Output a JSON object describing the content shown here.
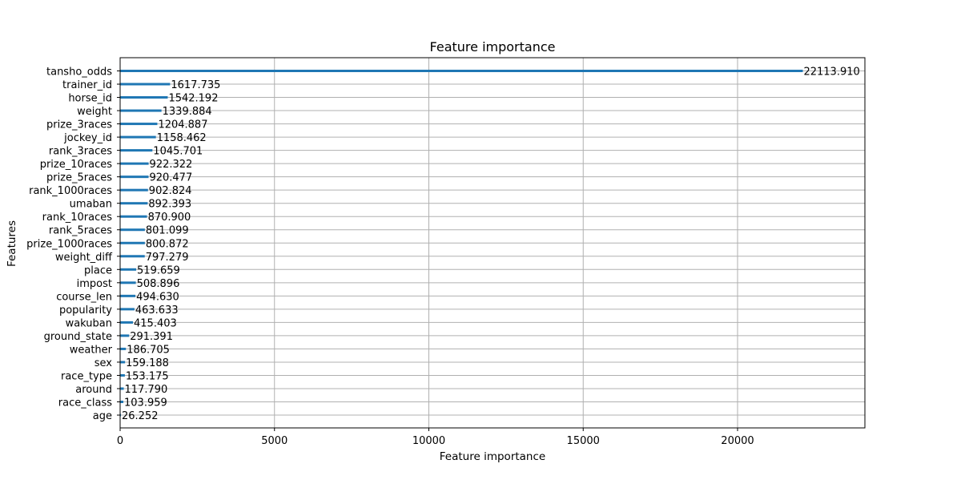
{
  "chart_data": {
    "type": "bar",
    "orientation": "horizontal",
    "title": "Feature importance",
    "xlabel": "Feature importance",
    "ylabel": "Features",
    "xlim": [
      0,
      24125
    ],
    "xticks": [
      0,
      5000,
      10000,
      15000,
      20000
    ],
    "grid": true,
    "bar_color": "#1f77b4",
    "categories": [
      "tansho_odds",
      "trainer_id",
      "horse_id",
      "weight",
      "prize_3races",
      "jockey_id",
      "rank_3races",
      "prize_10races",
      "prize_5races",
      "rank_1000races",
      "umaban",
      "rank_10races",
      "rank_5races",
      "prize_1000races",
      "weight_diff",
      "place",
      "impost",
      "course_len",
      "popularity",
      "wakuban",
      "ground_state",
      "weather",
      "sex",
      "race_type",
      "around",
      "race_class",
      "age"
    ],
    "values": [
      22113.91,
      1617.735,
      1542.192,
      1339.884,
      1204.887,
      1158.462,
      1045.701,
      922.322,
      920.477,
      902.824,
      892.393,
      870.9,
      801.099,
      800.872,
      797.279,
      519.659,
      508.896,
      494.63,
      463.633,
      415.403,
      291.391,
      186.705,
      159.188,
      153.175,
      117.79,
      103.959,
      26.252
    ],
    "value_labels": [
      "22113.910",
      "1617.735",
      "1542.192",
      "1339.884",
      "1204.887",
      "1158.462",
      "1045.701",
      "922.322",
      "920.477",
      "902.824",
      "892.393",
      "870.900",
      "801.099",
      "800.872",
      "797.279",
      "519.659",
      "508.896",
      "494.630",
      "463.633",
      "415.403",
      "291.391",
      "186.705",
      "159.188",
      "153.175",
      "117.790",
      "103.959",
      "26.252"
    ]
  }
}
